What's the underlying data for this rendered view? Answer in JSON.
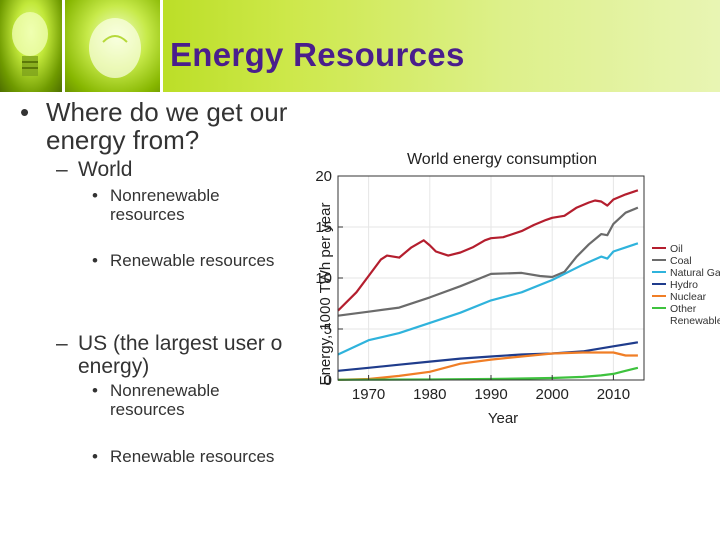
{
  "header": {
    "title": "Energy Resources",
    "images": [
      "light-bulb-icon",
      "light-bulb-icon"
    ]
  },
  "bullets": {
    "b1_line1": "Where do we get our",
    "b1_line2": "energy from?",
    "world": "World",
    "world_nonrenew_1": "Nonrenewable",
    "world_nonrenew_2": "resources",
    "world_renew": "Renewable resources",
    "us_line1": "US (the largest user o",
    "us_line2": "energy)",
    "us_nonrenew_1": "Nonrenewable",
    "us_nonrenew_2": "resources",
    "us_renew": "Renewable resources",
    "bullet_symbol": "•",
    "dash_symbol": "–"
  },
  "chart_data": {
    "type": "line",
    "title": "World energy consumption",
    "xlabel": "Year",
    "ylabel": "Energy, 1000 TWh per year",
    "xlim": [
      1965,
      2015
    ],
    "ylim": [
      0,
      20
    ],
    "xticks": [
      1970,
      1980,
      1990,
      2000,
      2010
    ],
    "yticks": [
      0,
      5,
      10,
      15,
      20
    ],
    "legend_position": "right",
    "series": [
      {
        "name": "Oil",
        "color": "#b41e2e",
        "x": [
          1965,
          1968,
          1970,
          1972,
          1973,
          1975,
          1977,
          1979,
          1980,
          1981,
          1983,
          1985,
          1987,
          1989,
          1990,
          1992,
          1995,
          1997,
          1999,
          2000,
          2002,
          2004,
          2006,
          2007,
          2008,
          2009,
          2010,
          2012,
          2014
        ],
        "y": [
          6.8,
          8.6,
          10.2,
          11.8,
          12.2,
          12.0,
          13.0,
          13.7,
          13.2,
          12.6,
          12.2,
          12.5,
          13.0,
          13.7,
          13.9,
          14.0,
          14.6,
          15.2,
          15.7,
          15.9,
          16.1,
          16.9,
          17.4,
          17.6,
          17.5,
          17.1,
          17.7,
          18.2,
          18.6
        ]
      },
      {
        "name": "Coal",
        "color": "#6b6b6b",
        "x": [
          1965,
          1970,
          1975,
          1980,
          1985,
          1990,
          1995,
          1998,
          2000,
          2002,
          2004,
          2006,
          2008,
          2009,
          2010,
          2012,
          2014
        ],
        "y": [
          6.3,
          6.7,
          7.1,
          8.1,
          9.2,
          10.4,
          10.5,
          10.2,
          10.1,
          10.6,
          12.1,
          13.3,
          14.3,
          14.2,
          15.3,
          16.4,
          16.9
        ]
      },
      {
        "name": "Natural Gas",
        "color": "#2fb3dc",
        "x": [
          1965,
          1970,
          1975,
          1980,
          1985,
          1990,
          1995,
          2000,
          2005,
          2008,
          2009,
          2010,
          2012,
          2014
        ],
        "y": [
          2.5,
          3.9,
          4.6,
          5.6,
          6.6,
          7.8,
          8.6,
          9.8,
          11.3,
          12.1,
          11.9,
          12.6,
          13.0,
          13.4
        ]
      },
      {
        "name": "Hydro",
        "color": "#1f3c8c",
        "x": [
          1965,
          1970,
          1975,
          1980,
          1985,
          1990,
          1995,
          2000,
          2005,
          2010,
          2014
        ],
        "y": [
          0.9,
          1.2,
          1.5,
          1.8,
          2.1,
          2.3,
          2.5,
          2.6,
          2.8,
          3.3,
          3.7
        ]
      },
      {
        "name": "Nuclear",
        "color": "#f07e26",
        "x": [
          1965,
          1970,
          1975,
          1980,
          1985,
          1990,
          1995,
          2000,
          2005,
          2008,
          2010,
          2012,
          2014
        ],
        "y": [
          0.02,
          0.1,
          0.4,
          0.8,
          1.6,
          2.0,
          2.3,
          2.6,
          2.7,
          2.7,
          2.7,
          2.4,
          2.4
        ]
      },
      {
        "name": "Other Renewable",
        "color": "#3ec23e",
        "x": [
          1965,
          1970,
          1980,
          1990,
          2000,
          2005,
          2008,
          2010,
          2012,
          2014
        ],
        "y": [
          0.02,
          0.03,
          0.05,
          0.1,
          0.2,
          0.3,
          0.45,
          0.6,
          0.9,
          1.2
        ]
      }
    ]
  }
}
